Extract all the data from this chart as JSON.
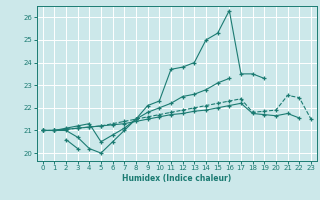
{
  "xlabel": "Humidex (Indice chaleur)",
  "xlim": [
    -0.5,
    23.5
  ],
  "ylim": [
    19.65,
    26.5
  ],
  "background_color": "#cce8ea",
  "grid_color": "#ffffff",
  "line_color": "#1b7b72",
  "lines": [
    {
      "x": [
        0,
        1,
        2,
        3,
        4,
        5,
        6,
        7,
        8,
        9,
        10,
        11,
        12,
        13,
        14,
        15,
        16,
        17,
        18,
        19
      ],
      "y": [
        21.0,
        21.0,
        21.0,
        20.7,
        20.2,
        20.0,
        20.5,
        21.0,
        21.5,
        22.1,
        22.3,
        23.7,
        23.8,
        24.0,
        25.0,
        25.3,
        26.3,
        23.5,
        23.5,
        23.3
      ],
      "style": "-",
      "marker": "+"
    },
    {
      "x": [
        2,
        3
      ],
      "y": [
        20.6,
        20.2
      ],
      "style": "-",
      "marker": "+"
    },
    {
      "x": [
        0,
        1,
        2,
        3,
        4,
        5,
        6,
        7,
        8,
        9,
        10,
        11,
        12,
        13,
        14,
        15,
        16
      ],
      "y": [
        21.0,
        21.0,
        21.1,
        21.2,
        21.3,
        20.5,
        20.8,
        21.1,
        21.5,
        21.8,
        22.0,
        22.2,
        22.5,
        22.6,
        22.8,
        23.1,
        23.3
      ],
      "style": "-",
      "marker": "+"
    },
    {
      "x": [
        0,
        1,
        2,
        3,
        4,
        5,
        6,
        7,
        8,
        9,
        10,
        11,
        12,
        13,
        14,
        15,
        16,
        17,
        18,
        19,
        20,
        21,
        22,
        23
      ],
      "y": [
        21.0,
        21.0,
        21.05,
        21.1,
        21.15,
        21.2,
        21.3,
        21.4,
        21.5,
        21.6,
        21.7,
        21.8,
        21.9,
        22.0,
        22.1,
        22.2,
        22.3,
        22.4,
        21.8,
        21.85,
        21.9,
        22.55,
        22.45,
        21.5
      ],
      "style": "--",
      "marker": "+"
    },
    {
      "x": [
        0,
        1,
        2,
        3,
        4,
        5,
        6,
        7,
        8,
        9,
        10,
        11,
        12,
        13,
        14,
        15,
        16,
        17,
        18,
        19,
        20,
        21,
        22
      ],
      "y": [
        21.0,
        21.0,
        21.05,
        21.1,
        21.15,
        21.2,
        21.25,
        21.3,
        21.4,
        21.5,
        21.6,
        21.7,
        21.75,
        21.85,
        21.9,
        22.0,
        22.1,
        22.2,
        21.75,
        21.7,
        21.65,
        21.75,
        21.55
      ],
      "style": "-",
      "marker": "+"
    }
  ],
  "yticks": [
    20,
    21,
    22,
    23,
    24,
    25,
    26
  ],
  "xticks": [
    0,
    1,
    2,
    3,
    4,
    5,
    6,
    7,
    8,
    9,
    10,
    11,
    12,
    13,
    14,
    15,
    16,
    17,
    18,
    19,
    20,
    21,
    22,
    23
  ]
}
